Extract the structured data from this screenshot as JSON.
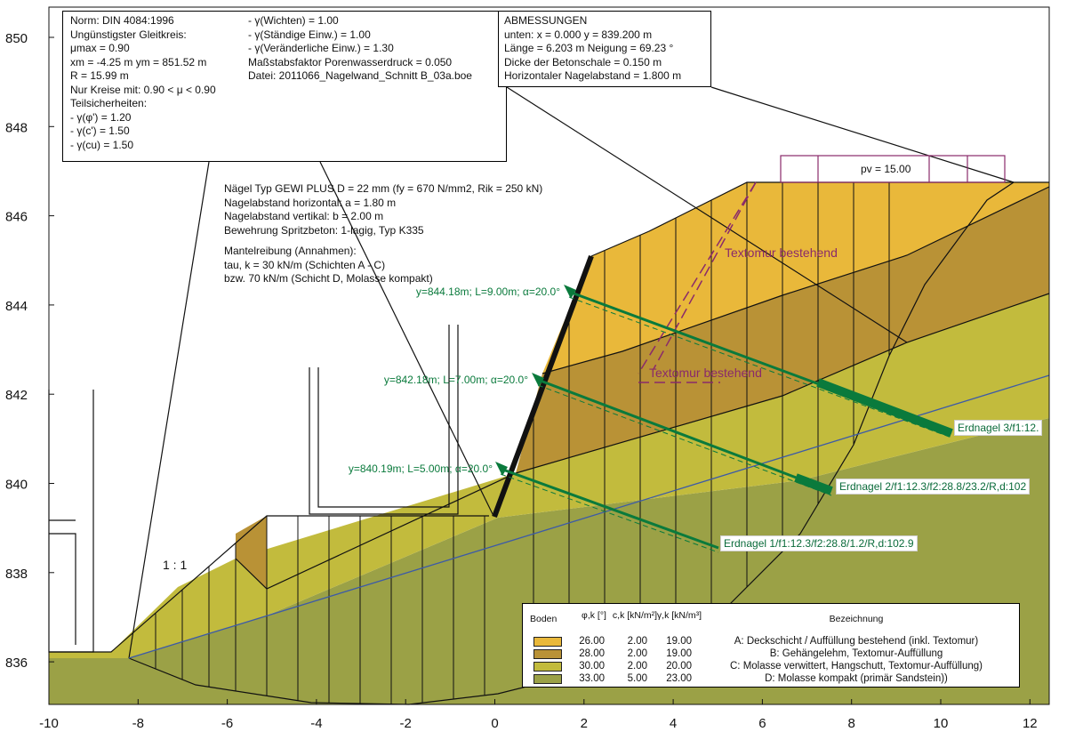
{
  "norm_box": {
    "left_lines": [
      "Norm:  DIN 4084:1996",
      "Ungünstigster Gleitkreis:",
      "μmax = 0.90",
      "xm = -4.25 m    ym = 851.52 m",
      "R = 15.99 m",
      "Nur Kreise mit: 0.90 < μ < 0.90",
      "Teilsicherheiten:",
      " - γ(φ') = 1.20",
      " - γ(c') = 1.50",
      " - γ(cu) = 1.50"
    ],
    "right_lines": [
      "- γ(Wichten) = 1.00",
      "- γ(Ständige Einw.) = 1.00",
      "- γ(Veränderliche Einw.) = 1.30",
      "Maßstabsfaktor Porenwasserdruck = 0.050",
      "Datei: 2011066_Nagelwand_Schnitt B_03a.boe"
    ]
  },
  "abmessungen_box": {
    "title": "ABMESSUNGEN",
    "lines": [
      "unten: x = 0.000    y = 839.200 m",
      "Länge = 6.203 m     Neigung = 69.23 °",
      "Dicke der Betonschale = 0.150 m",
      "Horizontaler Nagelabstand = 1.800 m"
    ]
  },
  "nail_info": {
    "lines": [
      "Nägel Typ GEWI PLUS D = 22 mm (fy = 670 N/mm2, Rik = 250 kN)",
      "Nagelabstand horizontal: a = 1.80 m",
      "Nagelabstand vertikal: b = 2.00 m",
      "Bewehrung Spritzbeton: 1-lagig, Typ K335",
      "",
      "Mantelreibung (Annahmen):",
      "tau, k = 30 kN/m (Schichten A - C)",
      "bzw. 70 kN/m (Schicht D, Molasse kompakt)"
    ]
  },
  "annotations": {
    "pv": "pv = 15.00",
    "textomur_1": "Textomur bestehend",
    "textomur_2": "Textomur bestehend",
    "slope_ratio": "1 : 1",
    "nail_top": "y=844.18m; L=9.00m; α=20.0°",
    "nail_mid": "y=842.18m; L=7.00m; α=20.0°",
    "nail_bot": "y=840.19m; L=5.00m; α=20.0°",
    "erdnagel_3": "Erdnagel 3/f1:12.",
    "erdnagel_2": "Erdnagel 2/f1:12.3/f2:28.8/23.2/R,d:102",
    "erdnagel_1": "Erdnagel 1/f1:12.3/f2:28.8/1.2/R,d:102.9"
  },
  "axes": {
    "x_ticks": [
      "-10",
      "-8",
      "-6",
      "-4",
      "-2",
      "0",
      "2",
      "4",
      "6",
      "8",
      "10",
      "12"
    ],
    "y_ticks": [
      "850",
      "848",
      "846",
      "844",
      "842",
      "840",
      "838",
      "836"
    ]
  },
  "legend": {
    "headers": {
      "boden": "Boden",
      "phi": "φ,k [°]",
      "c": "c,k [kN/m²]",
      "gamma": "γ,k [kN/m³]",
      "bez": "Bezeichnung"
    },
    "rows": [
      {
        "color": "#e9b83a",
        "phi": "26.00",
        "c": "2.00",
        "gamma": "19.00",
        "desc": "A: Deckschicht / Auffüllung bestehend (inkl. Textomur)"
      },
      {
        "color": "#b99236",
        "phi": "28.00",
        "c": "2.00",
        "gamma": "19.00",
        "desc": "B: Gehängelehm, Textomur-Auffüllung"
      },
      {
        "color": "#c2bb3d",
        "phi": "30.00",
        "c": "2.00",
        "gamma": "20.00",
        "desc": "C: Molasse verwittert, Hangschutt, Textomur-Auffüllung)"
      },
      {
        "color": "#9ba146",
        "phi": "33.00",
        "c": "5.00",
        "gamma": "23.00",
        "desc": "D: Molasse kompakt (primär Sandstein))"
      }
    ]
  },
  "colors": {
    "layer_a": "#e9b83a",
    "layer_b": "#b99236",
    "layer_c": "#c2bb3d",
    "layer_d": "#9ba146",
    "nail": "#0a7a3c",
    "water": "#3c5aa8",
    "textomur": "#8a2a6a"
  }
}
